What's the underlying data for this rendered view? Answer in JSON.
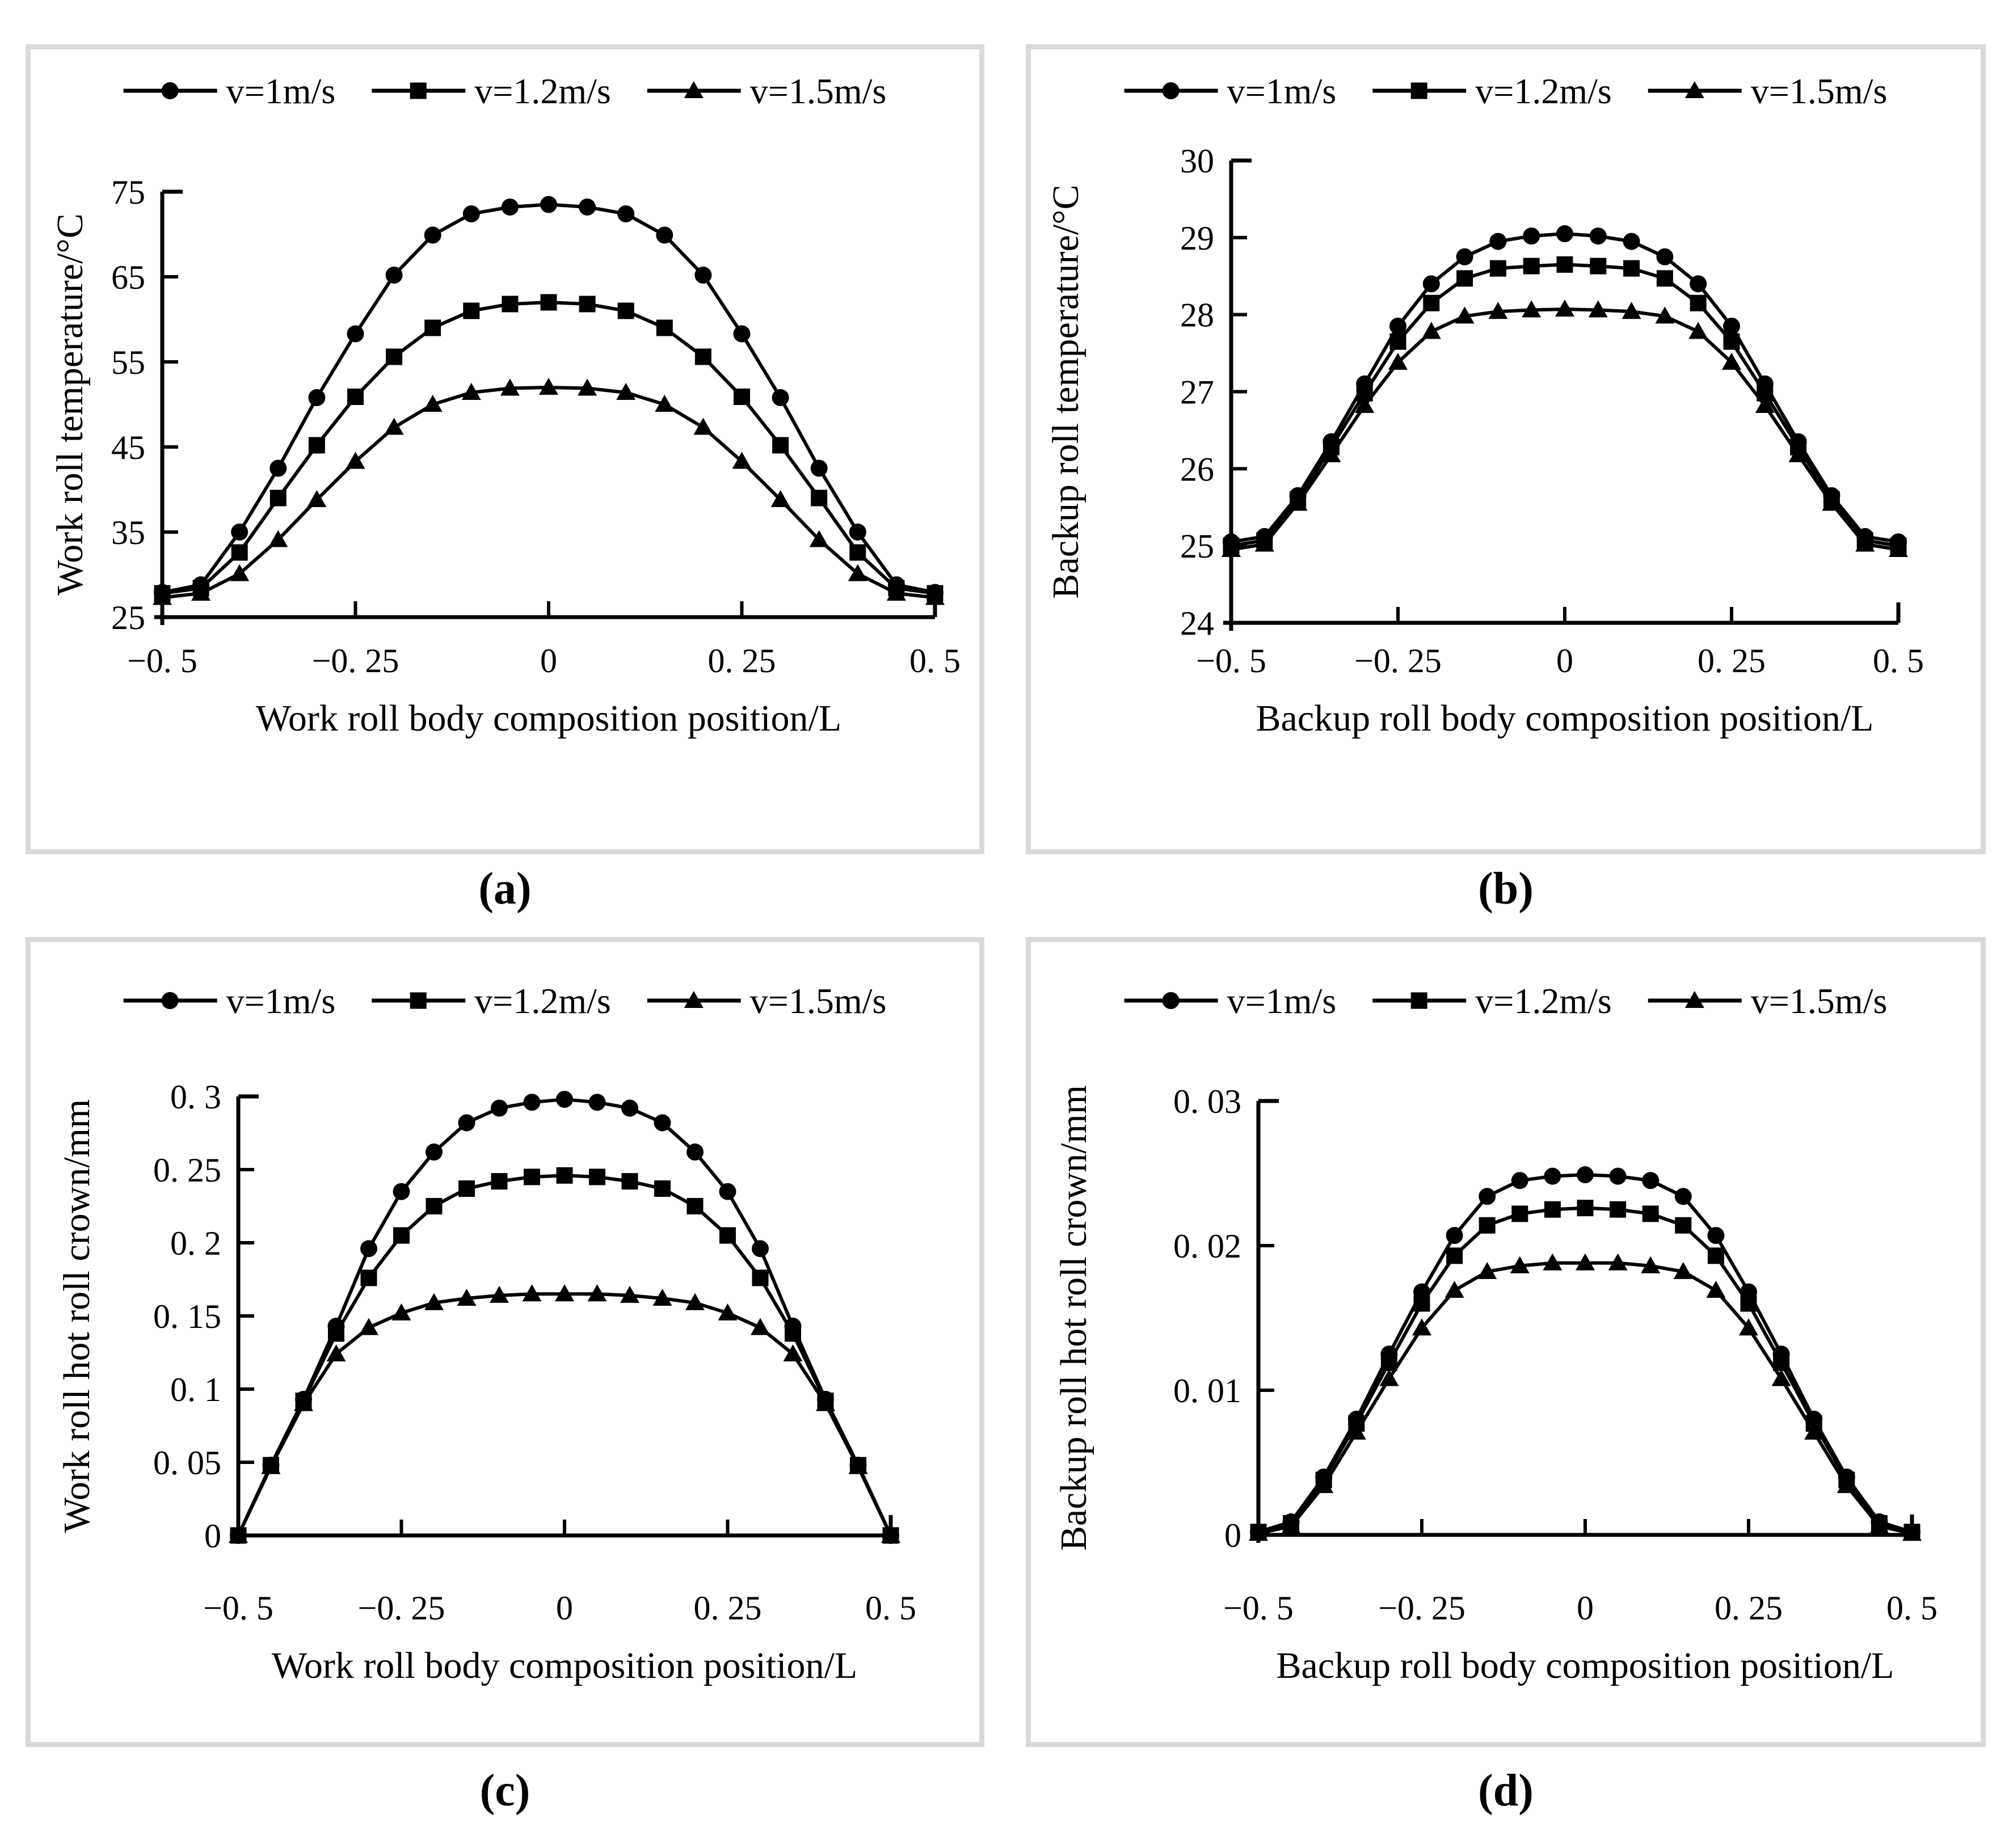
{
  "figure_background": "#ffffff",
  "panel_border_color": "#d9d9d9",
  "line_color": "#000000",
  "chart_data": [
    {
      "id": "a",
      "panel_caption": "(a)",
      "type": "line",
      "xlabel": "Work roll body composition position/L",
      "ylabel": "Work roll temperature/°C",
      "xlim": [
        -0.5,
        0.5
      ],
      "ylim": [
        25,
        75
      ],
      "xticks": [
        -0.5,
        -0.25,
        0,
        0.25,
        0.5
      ],
      "xtick_labels": [
        "−0. 5",
        "−0. 25",
        "0",
        "0. 25",
        "0. 5"
      ],
      "yticks": [
        25,
        35,
        45,
        55,
        65,
        75
      ],
      "ytick_labels": [
        "25",
        "35",
        "45",
        "55",
        "65",
        "75"
      ],
      "grid": false,
      "legend_position": "top",
      "x": [
        -0.5,
        -0.45,
        -0.4,
        -0.35,
        -0.3,
        -0.25,
        -0.2,
        -0.15,
        -0.1,
        -0.05,
        0,
        0.05,
        0.1,
        0.15,
        0.2,
        0.25,
        0.3,
        0.35,
        0.4,
        0.45,
        0.5
      ],
      "series": [
        {
          "name": "v=1m/s",
          "marker": "circle",
          "values": [
            27.9,
            28.8,
            35.0,
            42.5,
            50.8,
            58.3,
            65.2,
            69.9,
            72.4,
            73.2,
            73.5,
            73.2,
            72.4,
            69.9,
            65.2,
            58.3,
            50.8,
            42.5,
            35.0,
            28.8,
            27.9
          ]
        },
        {
          "name": "v=1.2m/s",
          "marker": "square",
          "values": [
            27.8,
            28.4,
            32.6,
            39.0,
            45.2,
            50.9,
            55.6,
            59.0,
            61.0,
            61.8,
            62.0,
            61.8,
            61.0,
            59.0,
            55.6,
            50.9,
            45.2,
            39.0,
            32.6,
            28.4,
            27.8
          ]
        },
        {
          "name": "v=1.5m/s",
          "marker": "triangle",
          "values": [
            27.3,
            27.8,
            30.1,
            34.1,
            38.8,
            43.3,
            47.3,
            50.0,
            51.4,
            51.9,
            52.0,
            51.9,
            51.4,
            50.0,
            47.3,
            43.3,
            38.8,
            34.1,
            30.1,
            27.8,
            27.3
          ]
        }
      ]
    },
    {
      "id": "b",
      "panel_caption": "(b)",
      "type": "line",
      "xlabel": "Backup roll body composition position/L",
      "ylabel": "Backup roll temperature/°C",
      "xlim": [
        -0.5,
        0.5
      ],
      "ylim": [
        24,
        30
      ],
      "xticks": [
        -0.5,
        -0.25,
        0,
        0.25,
        0.5
      ],
      "xtick_labels": [
        "−0. 5",
        "−0. 25",
        "0",
        "0. 25",
        "0. 5"
      ],
      "yticks": [
        24,
        25,
        26,
        27,
        28,
        29,
        30
      ],
      "ytick_labels": [
        "24",
        "25",
        "26",
        "27",
        "28",
        "29",
        "30"
      ],
      "grid": false,
      "legend_position": "top",
      "x": [
        -0.5,
        -0.45,
        -0.4,
        -0.35,
        -0.3,
        -0.25,
        -0.2,
        -0.15,
        -0.1,
        -0.05,
        0,
        0.05,
        0.1,
        0.15,
        0.2,
        0.25,
        0.3,
        0.35,
        0.4,
        0.45,
        0.5
      ],
      "series": [
        {
          "name": "v=1m/s",
          "marker": "circle",
          "values": [
            25.05,
            25.12,
            25.65,
            26.35,
            27.1,
            27.85,
            28.4,
            28.75,
            28.95,
            29.02,
            29.05,
            29.02,
            28.95,
            28.75,
            28.4,
            27.85,
            27.1,
            26.35,
            25.65,
            25.12,
            25.05
          ]
        },
        {
          "name": "v=1.2m/s",
          "marker": "square",
          "values": [
            25.0,
            25.07,
            25.6,
            26.28,
            26.98,
            27.65,
            28.15,
            28.47,
            28.6,
            28.63,
            28.65,
            28.63,
            28.6,
            28.47,
            28.15,
            27.65,
            26.98,
            26.28,
            25.6,
            25.07,
            25.0
          ]
        },
        {
          "name": "v=1.5m/s",
          "marker": "triangle",
          "values": [
            24.95,
            25.02,
            25.55,
            26.18,
            26.82,
            27.38,
            27.78,
            27.98,
            28.04,
            28.06,
            28.07,
            28.06,
            28.04,
            27.98,
            27.78,
            27.38,
            26.82,
            26.18,
            25.55,
            25.02,
            24.95
          ]
        }
      ]
    },
    {
      "id": "c",
      "panel_caption": "(c)",
      "type": "line",
      "xlabel": "Work roll body composition position/L",
      "ylabel": "Work roll hot roll crown/mm",
      "xlim": [
        -0.5,
        0.5
      ],
      "ylim": [
        0,
        0.3
      ],
      "xticks": [
        -0.5,
        -0.25,
        0,
        0.25,
        0.5
      ],
      "xtick_labels": [
        "−0. 5",
        "−0. 25",
        "0",
        "0. 25",
        "0. 5"
      ],
      "yticks": [
        0,
        0.05,
        0.1,
        0.15,
        0.2,
        0.25,
        0.3
      ],
      "ytick_labels": [
        "0",
        "0. 05",
        "0. 1",
        "0. 15",
        "0. 2",
        "0. 25",
        "0. 3"
      ],
      "grid": false,
      "legend_position": "top",
      "x": [
        -0.5,
        -0.45,
        -0.4,
        -0.35,
        -0.3,
        -0.25,
        -0.2,
        -0.15,
        -0.1,
        -0.05,
        0,
        0.05,
        0.1,
        0.15,
        0.2,
        0.25,
        0.3,
        0.35,
        0.4,
        0.45,
        0.5
      ],
      "series": [
        {
          "name": "v=1m/s",
          "marker": "circle",
          "values": [
            0,
            0.048,
            0.093,
            0.143,
            0.196,
            0.235,
            0.262,
            0.282,
            0.292,
            0.296,
            0.298,
            0.296,
            0.292,
            0.282,
            0.262,
            0.235,
            0.196,
            0.143,
            0.093,
            0.048,
            0
          ]
        },
        {
          "name": "v=1.2m/s",
          "marker": "square",
          "values": [
            0,
            0.048,
            0.092,
            0.138,
            0.176,
            0.205,
            0.225,
            0.237,
            0.242,
            0.245,
            0.246,
            0.245,
            0.242,
            0.237,
            0.225,
            0.205,
            0.176,
            0.138,
            0.092,
            0.048,
            0
          ]
        },
        {
          "name": "v=1.5m/s",
          "marker": "triangle",
          "values": [
            0,
            0.047,
            0.09,
            0.124,
            0.142,
            0.152,
            0.159,
            0.162,
            0.164,
            0.165,
            0.165,
            0.165,
            0.164,
            0.162,
            0.159,
            0.152,
            0.142,
            0.124,
            0.09,
            0.047,
            0
          ]
        }
      ]
    },
    {
      "id": "d",
      "panel_caption": "(d)",
      "type": "line",
      "xlabel": "Backup roll body composition position/L",
      "ylabel": "Backup roll hot roll crown/mm",
      "xlim": [
        -0.5,
        0.5
      ],
      "ylim": [
        0,
        0.03
      ],
      "xticks": [
        -0.5,
        -0.25,
        0,
        0.25,
        0.5
      ],
      "xtick_labels": [
        "−0. 5",
        "−0. 25",
        "0",
        "0. 25",
        "0. 5"
      ],
      "yticks": [
        0,
        0.01,
        0.02,
        0.03
      ],
      "ytick_labels": [
        "0",
        "0. 01",
        "0. 02",
        "0. 03"
      ],
      "grid": false,
      "legend_position": "top",
      "x": [
        -0.5,
        -0.45,
        -0.4,
        -0.35,
        -0.3,
        -0.25,
        -0.2,
        -0.15,
        -0.1,
        -0.05,
        0,
        0.05,
        0.1,
        0.15,
        0.2,
        0.25,
        0.3,
        0.35,
        0.4,
        0.45,
        0.5
      ],
      "series": [
        {
          "name": "v=1m/s",
          "marker": "circle",
          "values": [
            0.0002,
            0.0009,
            0.004,
            0.008,
            0.0125,
            0.0168,
            0.0207,
            0.0234,
            0.0245,
            0.0248,
            0.0249,
            0.0248,
            0.0245,
            0.0234,
            0.0207,
            0.0168,
            0.0125,
            0.008,
            0.004,
            0.0009,
            0.0002
          ]
        },
        {
          "name": "v=1.2m/s",
          "marker": "square",
          "values": [
            0.0002,
            0.0008,
            0.0038,
            0.0077,
            0.0119,
            0.016,
            0.0193,
            0.0214,
            0.0222,
            0.0225,
            0.0226,
            0.0225,
            0.0222,
            0.0214,
            0.0193,
            0.016,
            0.0119,
            0.0077,
            0.0038,
            0.0008,
            0.0002
          ]
        },
        {
          "name": "v=1.5m/s",
          "marker": "triangle",
          "values": [
            0.0001,
            0.0006,
            0.0034,
            0.0071,
            0.0108,
            0.0143,
            0.0169,
            0.0182,
            0.0186,
            0.0188,
            0.0188,
            0.0188,
            0.0186,
            0.0182,
            0.0169,
            0.0143,
            0.0108,
            0.0071,
            0.0034,
            0.0006,
            0.0001
          ]
        }
      ]
    }
  ]
}
